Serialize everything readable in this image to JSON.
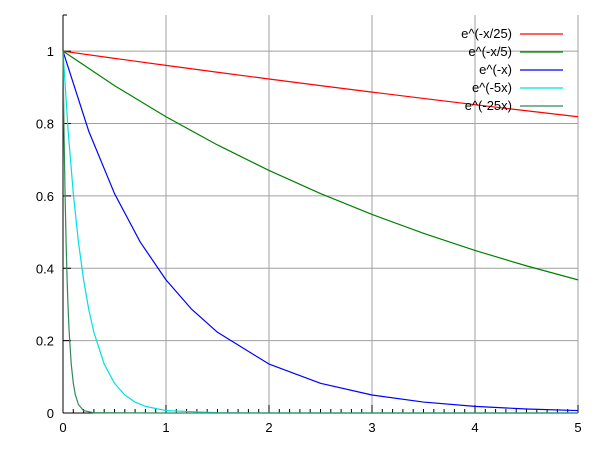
{
  "chart_data": {
    "type": "line",
    "title": "",
    "xlabel": "",
    "ylabel": "",
    "xlim": [
      0,
      5
    ],
    "ylim": [
      0,
      1.1
    ],
    "xticks": [
      "0",
      "1",
      "2",
      "3",
      "4",
      "5"
    ],
    "yticks": [
      "0",
      "0.2",
      "0.4",
      "0.6",
      "0.8",
      "1"
    ],
    "grid": true,
    "legend_position": "top-right",
    "series": [
      {
        "name": "e^(-x/25)",
        "color": "#ff0000",
        "x": [
          0,
          0.5,
          1,
          1.5,
          2,
          2.5,
          3,
          3.5,
          4,
          4.5,
          5
        ],
        "y": [
          1,
          0.9802,
          0.9608,
          0.9418,
          0.9231,
          0.9048,
          0.8869,
          0.8694,
          0.8521,
          0.8353,
          0.8187
        ]
      },
      {
        "name": "e^(-x/5)",
        "color": "#008000",
        "x": [
          0,
          0.5,
          1,
          1.5,
          2,
          2.5,
          3,
          3.5,
          4,
          4.5,
          5
        ],
        "y": [
          1,
          0.9048,
          0.8187,
          0.7408,
          0.6703,
          0.6065,
          0.5488,
          0.4966,
          0.4493,
          0.4066,
          0.3679
        ]
      },
      {
        "name": "e^(-x)",
        "color": "#0000ff",
        "x": [
          0,
          0.25,
          0.5,
          0.75,
          1,
          1.25,
          1.5,
          2,
          2.5,
          3,
          3.5,
          4,
          4.5,
          5
        ],
        "y": [
          1,
          0.7788,
          0.6065,
          0.4724,
          0.3679,
          0.2865,
          0.2231,
          0.1353,
          0.0821,
          0.0498,
          0.0302,
          0.0183,
          0.0111,
          0.0067
        ]
      },
      {
        "name": "e^(-5x)",
        "color": "#00e0e0",
        "x": [
          0,
          0.05,
          0.1,
          0.15,
          0.2,
          0.25,
          0.3,
          0.4,
          0.5,
          0.6,
          0.7,
          0.8,
          1,
          1.5,
          2,
          3,
          4,
          5
        ],
        "y": [
          1,
          0.7788,
          0.6065,
          0.4724,
          0.3679,
          0.2865,
          0.2231,
          0.1353,
          0.0821,
          0.0498,
          0.0302,
          0.0183,
          0.0067,
          0.0006,
          0.0,
          0.0,
          0.0,
          0.0
        ]
      },
      {
        "name": "e^(-25x)",
        "color": "#2e8b57",
        "x": [
          0,
          0.01,
          0.02,
          0.03,
          0.04,
          0.05,
          0.06,
          0.08,
          0.1,
          0.12,
          0.15,
          0.2,
          0.3,
          1,
          2,
          3,
          4,
          5
        ],
        "y": [
          1,
          0.7788,
          0.6065,
          0.4724,
          0.3679,
          0.2865,
          0.2231,
          0.1353,
          0.0821,
          0.0498,
          0.0235,
          0.0067,
          0.0006,
          0.0,
          0.0,
          0.0,
          0.0,
          0.0
        ]
      }
    ]
  }
}
